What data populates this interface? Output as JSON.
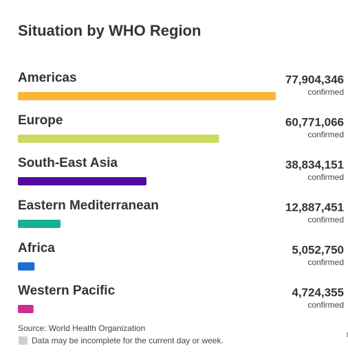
{
  "chart_data": {
    "type": "hbar",
    "title": "Situation by WHO Region",
    "categories": [
      "Americas",
      "Europe",
      "South-East Asia",
      "Eastern Mediterranean",
      "Africa",
      "Western Pacific"
    ],
    "values": [
      77904346,
      60771066,
      38834151,
      12887451,
      5052750,
      4724355
    ],
    "value_labels": [
      "77,904,346",
      "60,771,066",
      "38,834,151",
      "12,887,451",
      "5,052,750",
      "4,724,355"
    ],
    "value_unit": "confirmed",
    "colors": [
      "#fbb731",
      "#cbd95c",
      "#4f0c9f",
      "#16b092",
      "#1a6fd0",
      "#c8308e"
    ],
    "xlim": [
      0,
      77904346
    ],
    "source": "Source: World Health Organization",
    "note": "Data may be incomplete for the current day or week."
  }
}
